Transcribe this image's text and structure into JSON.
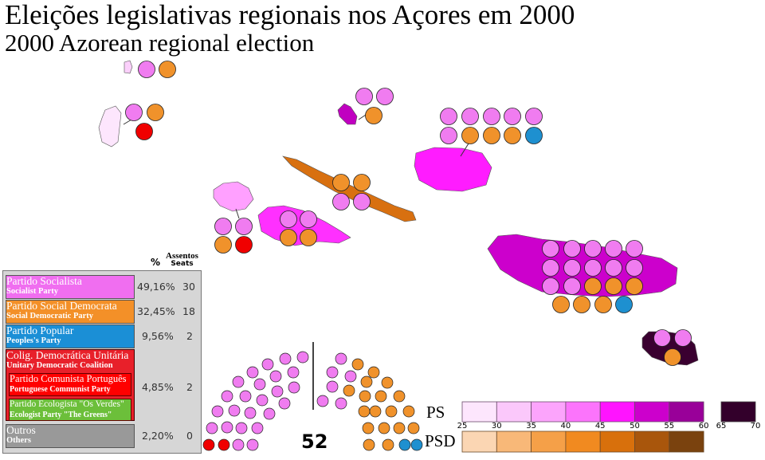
{
  "title": "Eleições legislativas regionais nos Açores em 2000",
  "subtitle": "2000 Azorean regional election",
  "legend": {
    "pct_header": "%",
    "seats_header": "Assentos",
    "seats_header_en": "Seats",
    "parties": [
      {
        "name": "Partido Socialista",
        "name_en": "Socialist Party",
        "pct": "49,16%",
        "seats": "30",
        "color": "#f06ef0"
      },
      {
        "name": "Partido Social Democrata",
        "name_en": "Social Democratic Party",
        "pct": "32,45%",
        "seats": "18",
        "color": "#f39028"
      },
      {
        "name": "Partido Popular",
        "name_en": "Peoples's Party",
        "pct": "9,56%",
        "seats": "2",
        "color": "#1b8fd6"
      },
      {
        "name": "Colig. Democrática Unitária",
        "name_en": "Unitary Democratic Coalition",
        "pct": "4,85%",
        "seats": "2",
        "color": "#e8202a",
        "members": [
          {
            "name": "Partido Comunista Português",
            "name_en": "Portuguese Communist Party",
            "color": "#ff0000"
          },
          {
            "name": "Partido Ecologista \"Os Verdes\"",
            "name_en": "Ecologist Party \"The Greens\"",
            "color": "#6cbf3a"
          }
        ]
      },
      {
        "name": "Outros",
        "name_en": "Others",
        "pct": "2,20%",
        "seats": "0",
        "color": "#999999"
      }
    ]
  },
  "parliament": {
    "total_seats": "52",
    "seat_colors": {
      "PS": "#f07cf0",
      "PSD": "#f0922b",
      "PP": "#1e90d0",
      "CDU": "#f00000"
    }
  },
  "scale": {
    "PS": {
      "label": "PS",
      "colors": [
        "#fde6fd",
        "#fbc8fb",
        "#fca4fc",
        "#fc74fc",
        "#ff14ff",
        "#cc00cc",
        "#990099"
      ],
      "extra_color": "#33002b",
      "extra_ticks": [
        "65",
        "70"
      ]
    },
    "PSD": {
      "label": "PSD",
      "colors": [
        "#fbd6b3",
        "#f8b878",
        "#f5a048",
        "#f18a20",
        "#d8700c",
        "#a9560c",
        "#7a420e"
      ]
    },
    "ticks": [
      "25",
      "30",
      "35",
      "40",
      "45",
      "50",
      "55",
      "60"
    ]
  }
}
